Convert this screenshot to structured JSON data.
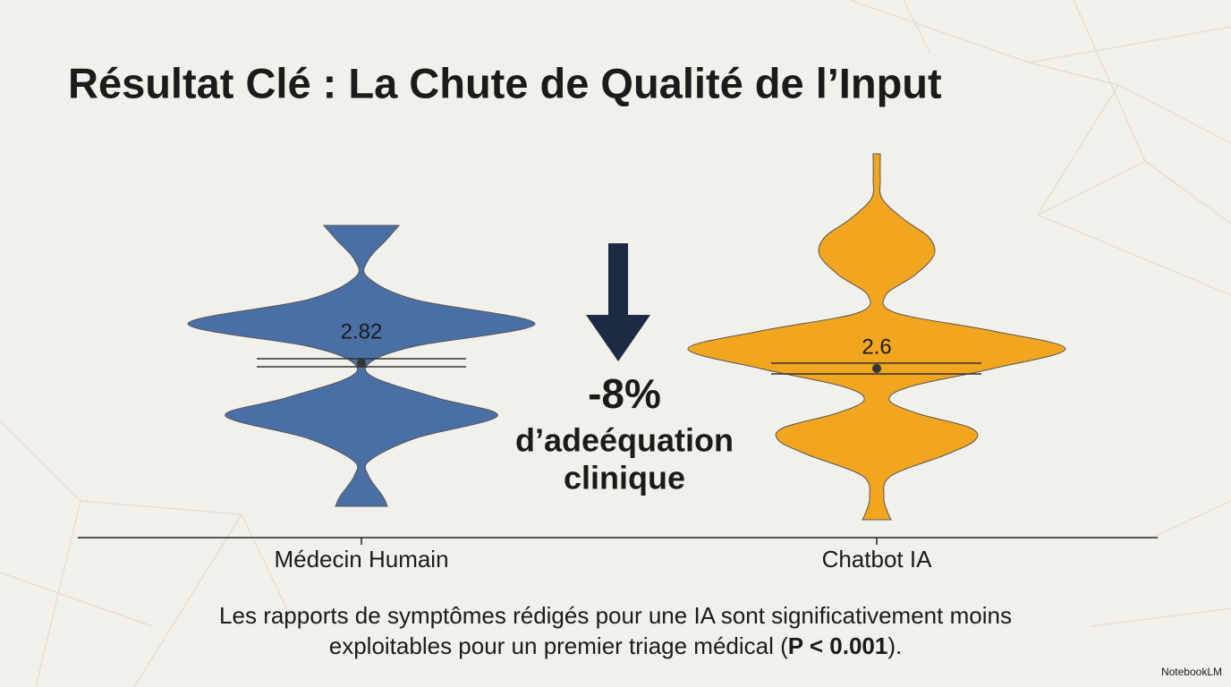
{
  "chart_data": {
    "type": "violin",
    "title": "Résultat Clé : La Chute de Qualité de l’Input",
    "categories": [
      "Médecin Humain",
      "Chatbot IA"
    ],
    "values": [
      2.82,
      2.6
    ],
    "colors": [
      "#4a6fa5",
      "#f2a51f"
    ],
    "annotation": {
      "change": "-8%",
      "lines": [
        "d’adeéquation",
        "clinique"
      ]
    },
    "caption": {
      "line1": "Les rapports de symptômes rédigés pour une IA sont significativement moins",
      "line2_start": "exploitables pour un premier triage médical  (",
      "line2_bold": "P < 0.001",
      "line2_end": ")."
    },
    "brand": "NotebookLM"
  }
}
